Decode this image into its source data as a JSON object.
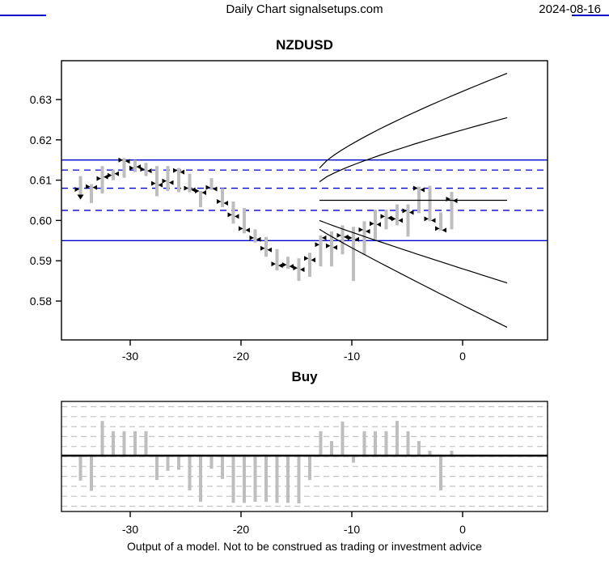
{
  "header": {
    "title": "Daily Chart signalsetups.com",
    "date": "2024-08-16"
  },
  "footer": {
    "disclaimer": "Output of a model. Not to be construed as trading or investment advice"
  },
  "colors": {
    "blue": "#0000CC",
    "bar_gray": "#BEBEBE",
    "grid_gray": "#C4C4C4",
    "black": "#000000"
  },
  "chart_data": [
    {
      "type": "bar",
      "subtype": "ohlc-with-forecast-fan",
      "title": "NZDUSD",
      "xlabel": "",
      "ylabel": "",
      "xlim": [
        -36.2,
        7.7
      ],
      "ylim": [
        0.5725,
        0.6395
      ],
      "grid": false,
      "x_ticks": {
        "values": [
          -30,
          -20,
          -10,
          0
        ],
        "labels": [
          "-30",
          "-20",
          "-10",
          "0"
        ]
      },
      "y_ticks": {
        "values": [
          0.58,
          0.59,
          0.6,
          0.61,
          0.62,
          0.63
        ],
        "labels": [
          "0.58",
          "0.59",
          "0.60",
          "0.61",
          "0.62",
          "0.63"
        ]
      },
      "levels": {
        "solid_blue": [
          0.615,
          0.595
        ],
        "dashed_blue": [
          0.6125,
          0.608,
          0.6025
        ]
      },
      "forecast": {
        "x_start": -13,
        "x_end": 4,
        "median": 0.605,
        "bands": [
          {
            "start": 0.613,
            "end": 0.6365,
            "bend": 0.78
          },
          {
            "start": 0.6096,
            "end": 0.6255,
            "bend": 0.78
          },
          {
            "start": 0.6,
            "end": 0.5845,
            "bend": 0.95
          },
          {
            "start": 0.5978,
            "end": 0.5735,
            "bend": 0.95
          }
        ]
      },
      "bars": [
        {
          "x": -35,
          "h": 0.611,
          "l": 0.6057,
          "o": 0.6077,
          "c": 0.606,
          "m": "down"
        },
        {
          "x": -34,
          "h": 0.609,
          "l": 0.6043,
          "o": 0.6084,
          "c": 0.6082
        },
        {
          "x": -33,
          "h": 0.6135,
          "l": 0.6067,
          "o": 0.6104,
          "c": 0.6108
        },
        {
          "x": -32,
          "h": 0.6125,
          "l": 0.61,
          "o": 0.6112,
          "c": 0.6116
        },
        {
          "x": -31,
          "h": 0.6155,
          "l": 0.6106,
          "o": 0.615,
          "c": 0.6147
        },
        {
          "x": -30,
          "h": 0.615,
          "l": 0.612,
          "o": 0.613,
          "c": 0.6133
        },
        {
          "x": -29,
          "h": 0.6143,
          "l": 0.611,
          "o": 0.6127,
          "c": 0.6123
        },
        {
          "x": -28,
          "h": 0.6135,
          "l": 0.606,
          "o": 0.6092,
          "c": 0.6088
        },
        {
          "x": -27,
          "h": 0.6135,
          "l": 0.6073,
          "o": 0.6098,
          "c": 0.6094
        },
        {
          "x": -26,
          "h": 0.613,
          "l": 0.607,
          "o": 0.6124,
          "c": 0.612
        },
        {
          "x": -25,
          "h": 0.6116,
          "l": 0.607,
          "o": 0.608,
          "c": 0.6076
        },
        {
          "x": -24,
          "h": 0.6073,
          "l": 0.6033,
          "o": 0.6073,
          "c": 0.6069
        },
        {
          "x": -23,
          "h": 0.6105,
          "l": 0.6076,
          "o": 0.6082,
          "c": 0.6078
        },
        {
          "x": -22,
          "h": 0.608,
          "l": 0.6033,
          "o": 0.6047,
          "c": 0.6043
        },
        {
          "x": -21,
          "h": 0.6047,
          "l": 0.5992,
          "o": 0.6014,
          "c": 0.601
        },
        {
          "x": -20,
          "h": 0.6031,
          "l": 0.5968,
          "o": 0.598,
          "c": 0.5976
        },
        {
          "x": -19,
          "h": 0.5978,
          "l": 0.5945,
          "o": 0.5957,
          "c": 0.5953
        },
        {
          "x": -18,
          "h": 0.5959,
          "l": 0.591,
          "o": 0.5931,
          "c": 0.5927
        },
        {
          "x": -17,
          "h": 0.5929,
          "l": 0.5876,
          "o": 0.5892,
          "c": 0.5888
        },
        {
          "x": -16,
          "h": 0.591,
          "l": 0.588,
          "o": 0.589,
          "c": 0.5886
        },
        {
          "x": -15,
          "h": 0.5906,
          "l": 0.585,
          "o": 0.5882,
          "c": 0.5878
        },
        {
          "x": -14,
          "h": 0.592,
          "l": 0.586,
          "o": 0.5906,
          "c": 0.5902
        },
        {
          "x": -13,
          "h": 0.5963,
          "l": 0.5886,
          "o": 0.594,
          "c": 0.5957
        },
        {
          "x": -12,
          "h": 0.5973,
          "l": 0.5886,
          "o": 0.5937,
          "c": 0.5933
        },
        {
          "x": -11,
          "h": 0.5988,
          "l": 0.5916,
          "o": 0.5963,
          "c": 0.5959
        },
        {
          "x": -10,
          "h": 0.5984,
          "l": 0.585,
          "o": 0.5957,
          "c": 0.5953
        },
        {
          "x": -9,
          "h": 0.5998,
          "l": 0.5914,
          "o": 0.5977,
          "c": 0.5973
        },
        {
          "x": -8,
          "h": 0.6027,
          "l": 0.5953,
          "o": 0.5992,
          "c": 0.599
        },
        {
          "x": -7,
          "h": 0.6027,
          "l": 0.5978,
          "o": 0.601,
          "c": 0.6006
        },
        {
          "x": -6,
          "h": 0.604,
          "l": 0.5988,
          "o": 0.6004,
          "c": 0.6
        },
        {
          "x": -5,
          "h": 0.604,
          "l": 0.596,
          "o": 0.6024,
          "c": 0.602
        },
        {
          "x": -4,
          "h": 0.6084,
          "l": 0.6018,
          "o": 0.608,
          "c": 0.6076
        },
        {
          "x": -3,
          "h": 0.6086,
          "l": 0.5998,
          "o": 0.6004,
          "c": 0.6
        },
        {
          "x": -2,
          "h": 0.602,
          "l": 0.5975,
          "o": 0.598,
          "c": 0.5976
        },
        {
          "x": -1,
          "h": 0.6071,
          "l": 0.5978,
          "o": 0.6053,
          "c": 0.6049
        }
      ]
    },
    {
      "type": "bar",
      "title": "Buy",
      "xlabel": "",
      "ylabel": "",
      "xlim": [
        -36.2,
        7.7
      ],
      "ylim": [
        -1,
        1
      ],
      "zero_line": true,
      "grid": "dashed-horizontal",
      "x_ticks": {
        "values": [
          -30,
          -20,
          -10,
          0
        ],
        "labels": [
          "-30",
          "-20",
          "-10",
          "0"
        ]
      },
      "x": [
        -35,
        -34,
        -33,
        -32,
        -31,
        -30,
        -29,
        -28,
        -27,
        -26,
        -25,
        -24,
        -23,
        -22,
        -21,
        -20,
        -19,
        -18,
        -17,
        -16,
        -15,
        -14,
        -13,
        -12,
        -11,
        -10,
        -9,
        -8,
        -7,
        -6,
        -5,
        -4,
        -3,
        -2,
        -1
      ],
      "values": [
        -0.46,
        -0.65,
        0.64,
        0.45,
        0.45,
        0.45,
        0.45,
        -0.45,
        -0.28,
        -0.26,
        -0.64,
        -0.85,
        -0.24,
        -0.43,
        -0.87,
        -0.87,
        -0.85,
        -0.85,
        -0.87,
        -0.87,
        -0.88,
        -0.45,
        0.45,
        0.27,
        0.63,
        -0.13,
        0.45,
        0.45,
        0.45,
        0.64,
        0.45,
        0.27,
        0.09,
        -0.64,
        0.09
      ]
    }
  ]
}
